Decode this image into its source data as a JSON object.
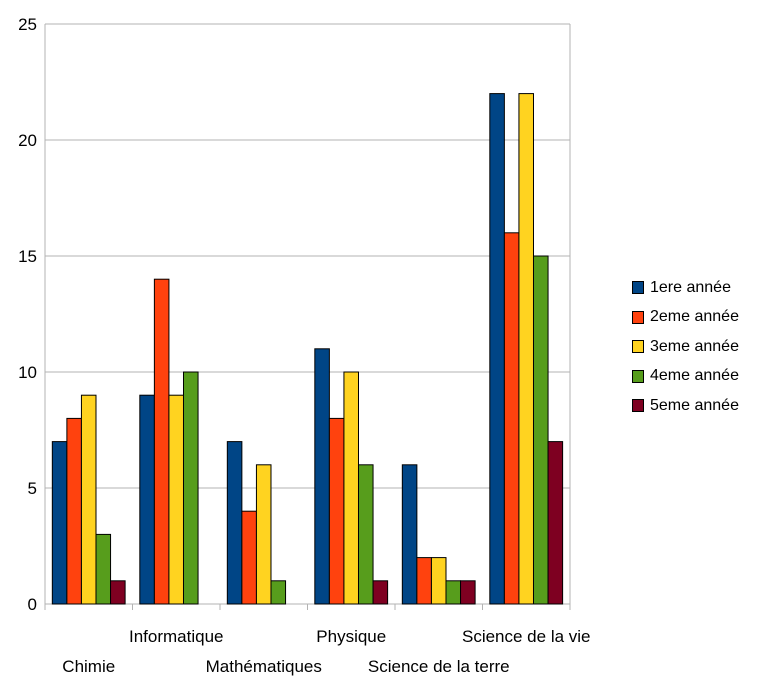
{
  "chart_data": {
    "type": "bar",
    "categories": [
      "Chimie",
      "Informatique",
      "Mathématiques",
      "Physique",
      "Science de la terre",
      "Science de la vie"
    ],
    "series": [
      {
        "name": "1ere année",
        "color": "#004586",
        "values": [
          7,
          9,
          7,
          11,
          6,
          22
        ]
      },
      {
        "name": "2eme année",
        "color": "#ff420e",
        "values": [
          8,
          14,
          4,
          8,
          2,
          16
        ]
      },
      {
        "name": "3eme année",
        "color": "#ffd320",
        "values": [
          9,
          9,
          6,
          10,
          2,
          22
        ]
      },
      {
        "name": "4eme année",
        "color": "#579d1c",
        "values": [
          3,
          10,
          1,
          6,
          1,
          15
        ]
      },
      {
        "name": "5eme année",
        "color": "#7e0021",
        "values": [
          1,
          0,
          0,
          1,
          1,
          7
        ]
      }
    ],
    "ylim": [
      0,
      25
    ],
    "yticks": [
      "0",
      "5",
      "10",
      "15",
      "20",
      "25"
    ],
    "grid": true,
    "legend_position": "right"
  }
}
